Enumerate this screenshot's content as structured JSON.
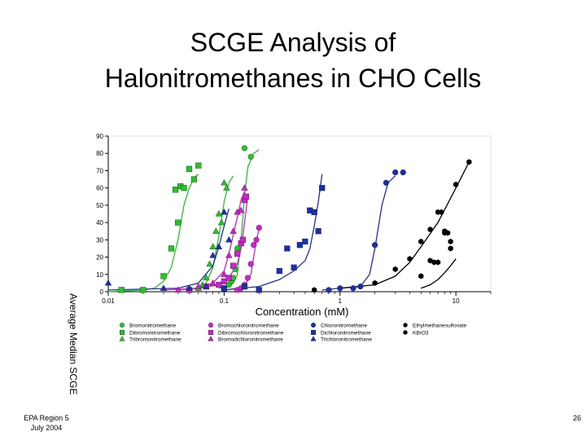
{
  "slide": {
    "title_line1": "SCGE Analysis of",
    "title_line2": "Halonitromethanes in CHO Cells",
    "footer_org": "EPA Region 5",
    "footer_date": "July 2004",
    "page_number": "26"
  },
  "chart_data": {
    "type": "scatter",
    "title": "",
    "xlabel": "Concentration (mM)",
    "ylabel": "Average Median SCGE",
    "x_scale": "log",
    "xlim": [
      0.01,
      20
    ],
    "ylim": [
      0,
      90
    ],
    "x_ticks": [
      0.01,
      0.1,
      1,
      10
    ],
    "x_tick_labels": [
      "0.01",
      "0.1",
      "1",
      "10"
    ],
    "y_ticks": [
      0,
      10,
      20,
      30,
      40,
      50,
      60,
      70,
      80,
      90
    ],
    "y_tick_labels": [
      "0",
      "10",
      "20",
      "30",
      "40",
      "50",
      "60",
      "70",
      "80",
      "90"
    ],
    "grid": false,
    "legend_position": "below",
    "series": [
      {
        "name": "Bromonitromethane",
        "color": "#22c822",
        "marker": "circle",
        "points": [
          [
            0.1,
            2
          ],
          [
            0.11,
            4
          ],
          [
            0.115,
            6
          ],
          [
            0.12,
            8
          ],
          [
            0.125,
            13
          ],
          [
            0.13,
            25
          ],
          [
            0.15,
            83
          ],
          [
            0.17,
            78
          ]
        ],
        "curve": [
          [
            0.09,
            2
          ],
          [
            0.11,
            3
          ],
          [
            0.12,
            5
          ],
          [
            0.13,
            10
          ],
          [
            0.14,
            30
          ],
          [
            0.15,
            55
          ],
          [
            0.16,
            72
          ],
          [
            0.18,
            80
          ],
          [
            0.2,
            82
          ]
        ]
      },
      {
        "name": "Dibromonitromethane",
        "color": "#22c822",
        "marker": "square",
        "points": [
          [
            0.013,
            1
          ],
          [
            0.02,
            1
          ],
          [
            0.03,
            9
          ],
          [
            0.035,
            25
          ],
          [
            0.038,
            59
          ],
          [
            0.04,
            40
          ],
          [
            0.042,
            61
          ],
          [
            0.045,
            60
          ],
          [
            0.05,
            71
          ],
          [
            0.055,
            65
          ],
          [
            0.06,
            73
          ]
        ],
        "curve": [
          [
            0.01,
            0
          ],
          [
            0.02,
            1
          ],
          [
            0.025,
            2
          ],
          [
            0.03,
            6
          ],
          [
            0.035,
            14
          ],
          [
            0.04,
            30
          ],
          [
            0.045,
            50
          ],
          [
            0.05,
            60
          ],
          [
            0.055,
            66
          ],
          [
            0.06,
            68
          ]
        ]
      },
      {
        "name": "Tribromonitromethane",
        "color": "#22c822",
        "marker": "triangle",
        "points": [
          [
            0.06,
            2
          ],
          [
            0.065,
            4
          ],
          [
            0.07,
            8
          ],
          [
            0.075,
            16
          ],
          [
            0.08,
            26
          ],
          [
            0.085,
            35
          ],
          [
            0.09,
            45
          ],
          [
            0.095,
            40
          ],
          [
            0.1,
            63
          ],
          [
            0.105,
            60
          ]
        ],
        "curve": [
          [
            0.05,
            1
          ],
          [
            0.06,
            2
          ],
          [
            0.07,
            5
          ],
          [
            0.08,
            14
          ],
          [
            0.09,
            32
          ],
          [
            0.1,
            52
          ],
          [
            0.11,
            63
          ],
          [
            0.12,
            67
          ]
        ]
      },
      {
        "name": "Bromochloronitromethane",
        "color": "#d020d0",
        "marker": "circle",
        "points": [
          [
            0.13,
            1
          ],
          [
            0.14,
            2
          ],
          [
            0.15,
            4
          ],
          [
            0.16,
            8
          ],
          [
            0.17,
            16
          ],
          [
            0.18,
            27
          ],
          [
            0.19,
            30
          ],
          [
            0.2,
            37
          ]
        ],
        "curve": [
          [
            0.1,
            1
          ],
          [
            0.13,
            2
          ],
          [
            0.15,
            3
          ],
          [
            0.17,
            10
          ],
          [
            0.18,
            20
          ],
          [
            0.19,
            30
          ],
          [
            0.2,
            36
          ]
        ]
      },
      {
        "name": "Dibromochloronitromethane",
        "color": "#d020d0",
        "marker": "square",
        "points": [
          [
            0.05,
            1
          ],
          [
            0.07,
            3
          ],
          [
            0.09,
            4
          ],
          [
            0.1,
            6
          ],
          [
            0.11,
            8
          ],
          [
            0.12,
            15
          ],
          [
            0.13,
            22
          ],
          [
            0.14,
            28
          ],
          [
            0.145,
            30
          ],
          [
            0.15,
            53
          ],
          [
            0.155,
            55
          ]
        ],
        "curve": [
          [
            0.03,
            1
          ],
          [
            0.06,
            2
          ],
          [
            0.09,
            4
          ],
          [
            0.11,
            8
          ],
          [
            0.13,
            16
          ],
          [
            0.14,
            25
          ],
          [
            0.15,
            40
          ],
          [
            0.16,
            55
          ]
        ]
      },
      {
        "name": "Bromodichloronitromethane",
        "color": "#d020d0",
        "marker": "triangle",
        "points": [
          [
            0.04,
            1
          ],
          [
            0.06,
            3
          ],
          [
            0.08,
            5
          ],
          [
            0.1,
            10
          ],
          [
            0.11,
            21
          ],
          [
            0.12,
            35
          ],
          [
            0.13,
            46
          ],
          [
            0.14,
            47
          ],
          [
            0.15,
            60
          ]
        ],
        "curve": [
          [
            0.04,
            1
          ],
          [
            0.06,
            2
          ],
          [
            0.08,
            5
          ],
          [
            0.1,
            12
          ],
          [
            0.11,
            22
          ],
          [
            0.12,
            33
          ],
          [
            0.13,
            43
          ],
          [
            0.14,
            53
          ],
          [
            0.15,
            58
          ]
        ]
      },
      {
        "name": "Chloronitromethane",
        "color": "#1a2fb0",
        "marker": "circle",
        "points": [
          [
            0.8,
            1
          ],
          [
            1,
            2
          ],
          [
            1.3,
            2
          ],
          [
            1.5,
            3
          ],
          [
            2,
            27
          ],
          [
            2.5,
            63
          ],
          [
            3,
            69
          ],
          [
            3.5,
            69
          ]
        ],
        "curve": [
          [
            0.7,
            1
          ],
          [
            1,
            2
          ],
          [
            1.5,
            3
          ],
          [
            1.8,
            10
          ],
          [
            2,
            25
          ],
          [
            2.3,
            50
          ],
          [
            2.6,
            63
          ],
          [
            3,
            67
          ]
        ]
      },
      {
        "name": "Dichloronitromethane",
        "color": "#1a2fb0",
        "marker": "square",
        "points": [
          [
            0.1,
            2
          ],
          [
            0.15,
            3
          ],
          [
            0.2,
            1
          ],
          [
            0.3,
            12
          ],
          [
            0.35,
            25
          ],
          [
            0.4,
            14
          ],
          [
            0.45,
            27
          ],
          [
            0.5,
            29
          ],
          [
            0.55,
            47
          ],
          [
            0.6,
            46
          ],
          [
            0.65,
            35
          ],
          [
            0.7,
            60
          ]
        ],
        "curve": [
          [
            0.1,
            1
          ],
          [
            0.2,
            3
          ],
          [
            0.3,
            7
          ],
          [
            0.4,
            12
          ],
          [
            0.5,
            18
          ],
          [
            0.55,
            25
          ],
          [
            0.6,
            38
          ],
          [
            0.65,
            52
          ],
          [
            0.7,
            68
          ]
        ]
      },
      {
        "name": "Trichloronitromethane",
        "color": "#1a2fb0",
        "marker": "triangle",
        "points": [
          [
            0.01,
            5
          ],
          [
            0.03,
            2
          ],
          [
            0.05,
            2
          ],
          [
            0.07,
            3
          ],
          [
            0.08,
            21
          ],
          [
            0.09,
            26
          ],
          [
            0.1,
            46
          ],
          [
            0.11,
            30
          ]
        ],
        "curve": [
          [
            0.01,
            1
          ],
          [
            0.04,
            2
          ],
          [
            0.06,
            5
          ],
          [
            0.08,
            15
          ],
          [
            0.09,
            26
          ],
          [
            0.1,
            38
          ],
          [
            0.11,
            48
          ]
        ]
      },
      {
        "name": "Ethylmethanesulfonate",
        "color": "#000000",
        "marker": "hexagon",
        "points": [
          [
            0.6,
            1
          ],
          [
            2,
            5
          ],
          [
            3,
            13
          ],
          [
            4,
            19
          ],
          [
            5,
            29
          ],
          [
            6,
            36
          ],
          [
            7,
            46
          ],
          [
            7.5,
            46
          ],
          [
            8,
            35
          ],
          [
            9,
            29
          ],
          [
            10,
            62
          ],
          [
            13,
            75
          ]
        ],
        "curve": [
          [
            1,
            2
          ],
          [
            2,
            4
          ],
          [
            3,
            9
          ],
          [
            4,
            17
          ],
          [
            5,
            26
          ],
          [
            7,
            40
          ],
          [
            10,
            60
          ],
          [
            13,
            75
          ]
        ]
      },
      {
        "name": "KBrO3",
        "color": "#000000",
        "marker": "hexagon",
        "points": [
          [
            5,
            9
          ],
          [
            6,
            18
          ],
          [
            6.5,
            17
          ],
          [
            7,
            17
          ],
          [
            8,
            34
          ],
          [
            8.5,
            34
          ],
          [
            9,
            25
          ]
        ],
        "curve": [
          [
            5,
            2
          ],
          [
            6,
            4
          ],
          [
            7,
            7
          ],
          [
            8,
            11
          ],
          [
            9,
            15
          ],
          [
            10,
            19
          ]
        ]
      }
    ]
  }
}
